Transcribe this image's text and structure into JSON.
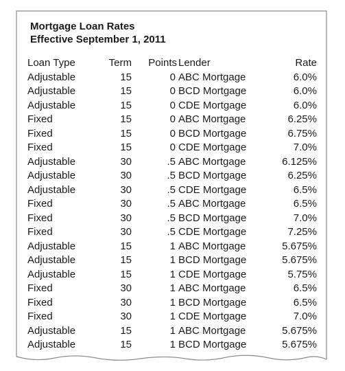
{
  "document": {
    "title_line1": "Mortgage Loan Rates",
    "title_line2": "Effective September 1, 2011"
  },
  "table": {
    "headers": {
      "loan_type": "Loan Type",
      "term": "Term",
      "points": "Points",
      "lender": "Lender",
      "rate": "Rate"
    },
    "rows": [
      {
        "loan_type": "Adjustable",
        "term": "15",
        "points": "0",
        "lender": "ABC Mortgage",
        "rate": "6.0%"
      },
      {
        "loan_type": "Adjustable",
        "term": "15",
        "points": "0",
        "lender": "BCD Mortgage",
        "rate": "6.0%"
      },
      {
        "loan_type": "Adjustable",
        "term": "15",
        "points": "0",
        "lender": "CDE Mortgage",
        "rate": "6.0%"
      },
      {
        "loan_type": "Fixed",
        "term": "15",
        "points": "0",
        "lender": "ABC Mortgage",
        "rate": "6.25%"
      },
      {
        "loan_type": "Fixed",
        "term": "15",
        "points": "0",
        "lender": "BCD Mortgage",
        "rate": "6.75%"
      },
      {
        "loan_type": "Fixed",
        "term": "15",
        "points": "0",
        "lender": "CDE Mortgage",
        "rate": "7.0%"
      },
      {
        "loan_type": "Adjustable",
        "term": "30",
        "points": ".5",
        "lender": "ABC Mortgage",
        "rate": "6.125%"
      },
      {
        "loan_type": "Adjustable",
        "term": "30",
        "points": ".5",
        "lender": "BCD Mortgage",
        "rate": "6.25%"
      },
      {
        "loan_type": "Adjustable",
        "term": "30",
        "points": ".5",
        "lender": "CDE Mortgage",
        "rate": "6.5%"
      },
      {
        "loan_type": "Fixed",
        "term": "30",
        "points": ".5",
        "lender": "ABC Mortgage",
        "rate": "6.5%"
      },
      {
        "loan_type": "Fixed",
        "term": "30",
        "points": ".5",
        "lender": "BCD Mortgage",
        "rate": "7.0%"
      },
      {
        "loan_type": "Fixed",
        "term": "30",
        "points": ".5",
        "lender": "CDE Mortgage",
        "rate": "7.25%"
      },
      {
        "loan_type": "Adjustable",
        "term": "15",
        "points": "1",
        "lender": "ABC Mortgage",
        "rate": "5.675%"
      },
      {
        "loan_type": "Adjustable",
        "term": "15",
        "points": "1",
        "lender": "BCD Mortgage",
        "rate": "5.675%"
      },
      {
        "loan_type": "Adjustable",
        "term": "15",
        "points": "1",
        "lender": "CDE Mortgage",
        "rate": "5.75%"
      },
      {
        "loan_type": "Fixed",
        "term": "30",
        "points": "1",
        "lender": "ABC Mortgage",
        "rate": "6.5%"
      },
      {
        "loan_type": "Fixed",
        "term": "30",
        "points": "1",
        "lender": "BCD Mortgage",
        "rate": "6.5%"
      },
      {
        "loan_type": "Fixed",
        "term": "30",
        "points": "1",
        "lender": "CDE Mortgage",
        "rate": "7.0%"
      },
      {
        "loan_type": "Adjustable",
        "term": "15",
        "points": "1",
        "lender": "ABC Mortgage",
        "rate": "5.675%"
      },
      {
        "loan_type": "Adjustable",
        "term": "15",
        "points": "1",
        "lender": "BCD Mortgage",
        "rate": "5.675%"
      }
    ]
  },
  "colors": {
    "border": "#8a8a8a",
    "text": "#1a1a1a"
  }
}
